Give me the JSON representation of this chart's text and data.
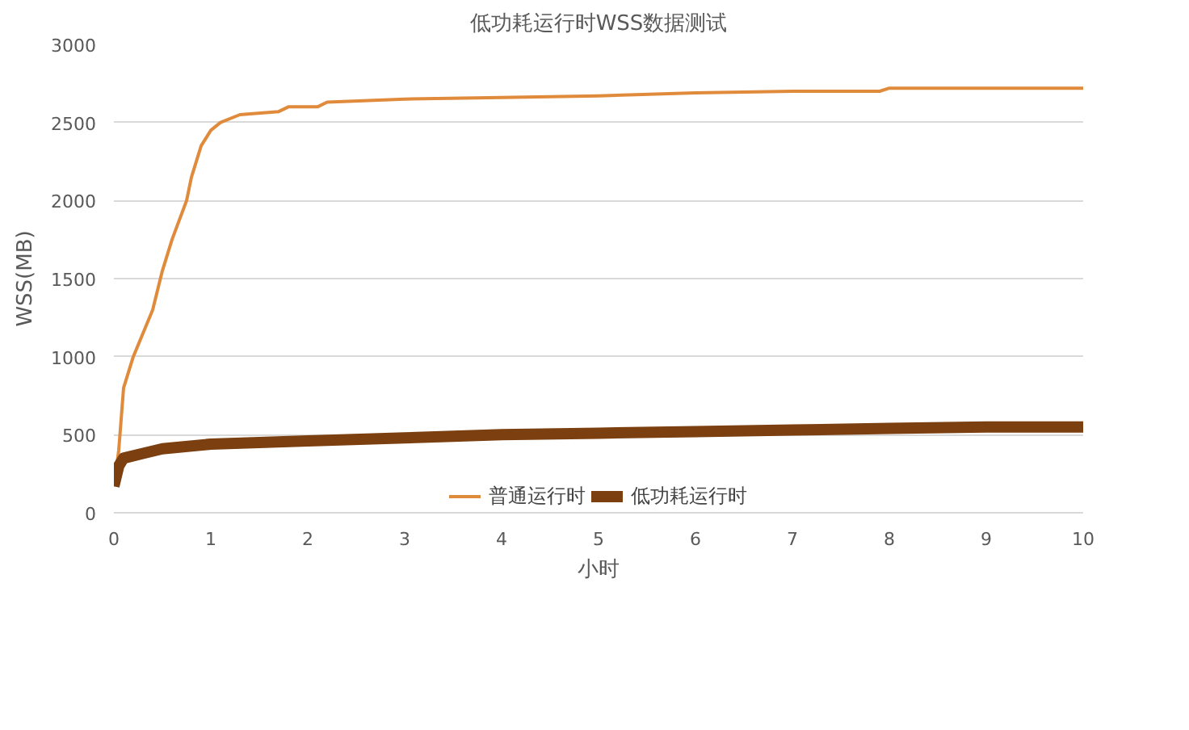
{
  "chart_data": {
    "type": "line",
    "title": "低功耗运行时WSS数据测试",
    "xlabel": "小时",
    "ylabel": "WSS(MB)",
    "xlim": [
      0,
      10
    ],
    "xticks": [
      0,
      1,
      2,
      3,
      4,
      5,
      6,
      7,
      8,
      9,
      10
    ],
    "ylim": [
      0,
      3000
    ],
    "yticks": [
      0,
      500,
      1000,
      1500,
      2000,
      2500,
      3000
    ],
    "grid": "y",
    "legend": "bottom",
    "series": [
      {
        "name": "普通运行时",
        "color": "#e08a3c",
        "x": [
          0,
          0.05,
          0.1,
          0.2,
          0.4,
          0.5,
          0.6,
          0.75,
          0.8,
          0.9,
          1.0,
          1.1,
          1.3,
          1.7,
          1.8,
          2.1,
          2.2,
          3,
          4,
          5,
          6,
          7,
          7.9,
          8,
          9,
          10
        ],
        "values": [
          170,
          400,
          800,
          1000,
          1300,
          1550,
          1750,
          2000,
          2150,
          2350,
          2450,
          2500,
          2550,
          2570,
          2600,
          2600,
          2630,
          2650,
          2660,
          2670,
          2690,
          2700,
          2700,
          2720,
          2720,
          2720
        ]
      },
      {
        "name": "低功耗运行时",
        "color": "#7b3f10",
        "x": [
          0,
          0.05,
          0.1,
          0.3,
          0.5,
          1,
          2,
          3,
          4,
          5,
          6,
          7,
          8,
          9,
          10
        ],
        "values": [
          170,
          300,
          350,
          380,
          410,
          440,
          460,
          480,
          500,
          510,
          520,
          530,
          540,
          550,
          550
        ]
      }
    ]
  }
}
